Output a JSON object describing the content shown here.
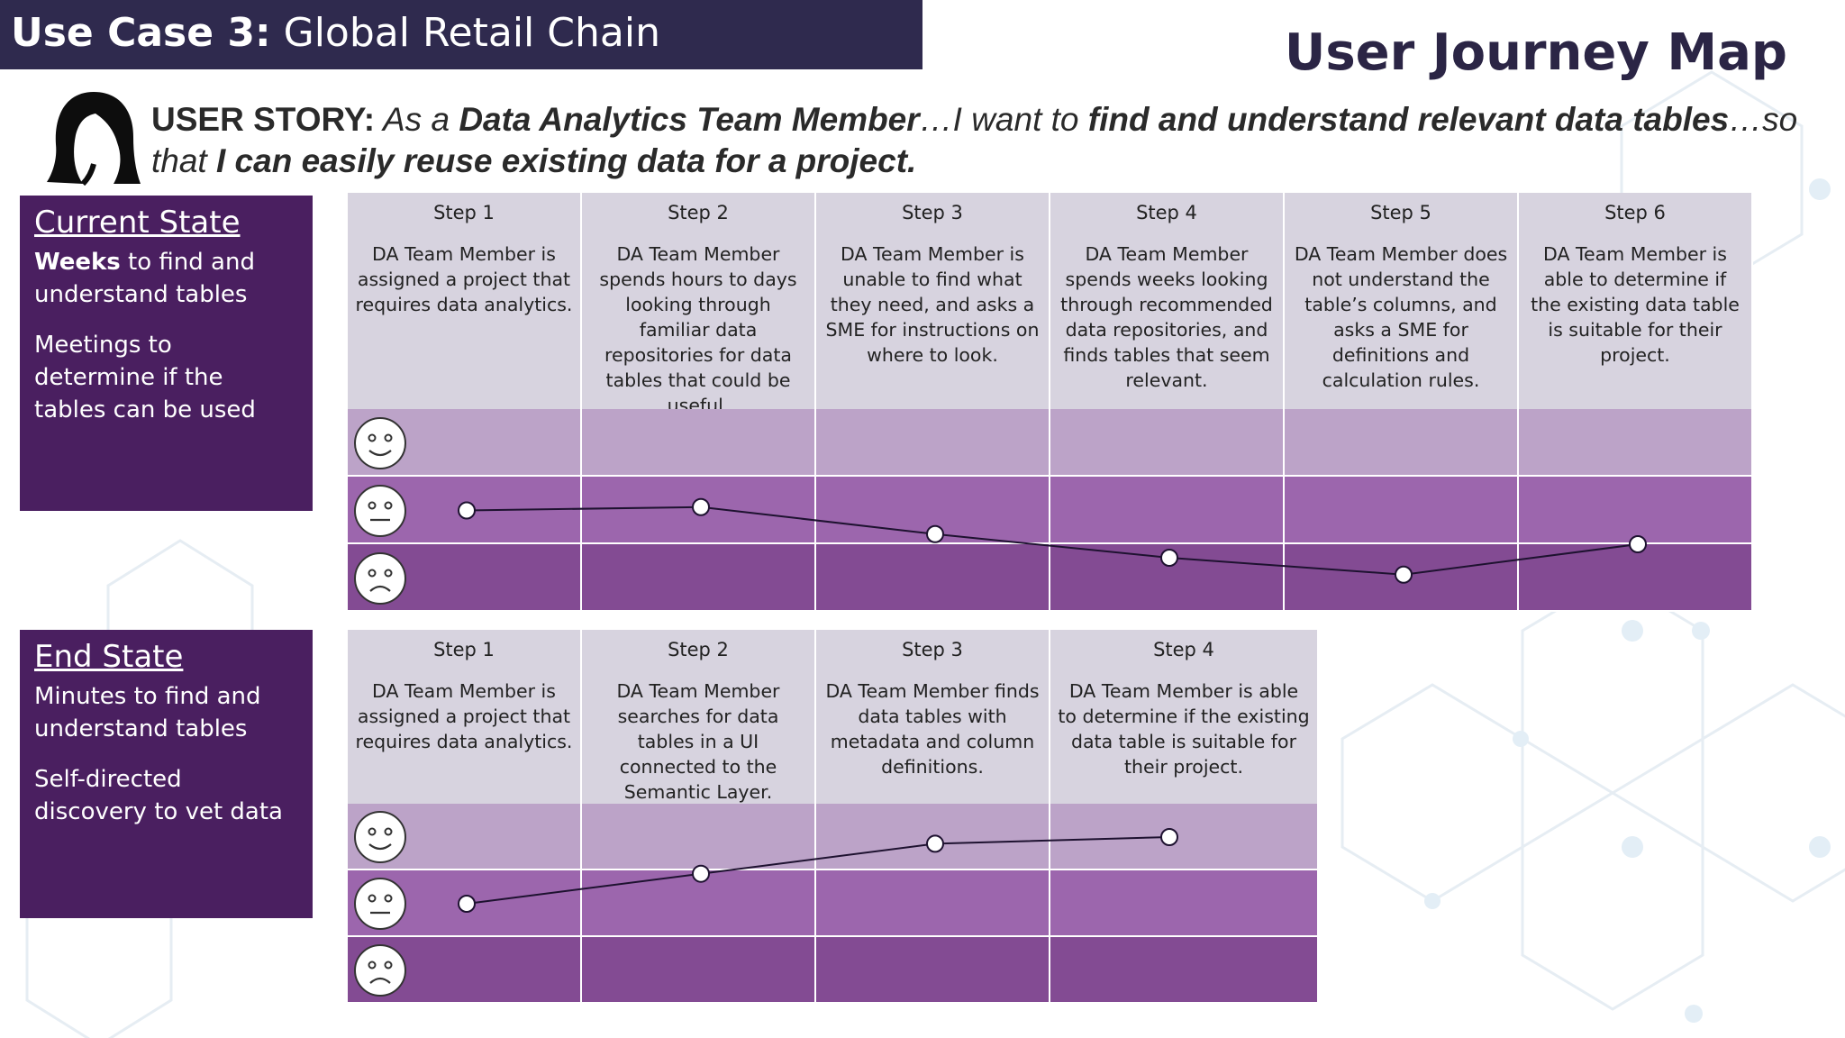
{
  "header": {
    "use_case_bold": "Use Case 3:",
    "use_case_rest": " Global Retail Chain",
    "title": "User Journey Map"
  },
  "story": {
    "lead": "USER STORY:",
    "part1": " As a ",
    "role": "Data Analytics Team Member",
    "part2": "…I want to ",
    "goal": "find and understand relevant data tables",
    "part3": "…so that ",
    "benefit": "I can easily reuse existing data for a project."
  },
  "current": {
    "title": "Current State",
    "line1_bold": "Weeks",
    "line1_rest": " to find and understand tables",
    "line2": "Meetings to determine if the tables can be used",
    "steps": [
      {
        "label": "Step 1",
        "desc": "DA Team Member is assigned a project that requires data analytics."
      },
      {
        "label": "Step 2",
        "desc": "DA Team Member spends hours to days looking through familiar data repositories for data tables that could be useful."
      },
      {
        "label": "Step 3",
        "desc": "DA Team Member is unable to find what they need, and asks a SME for instructions on where to look."
      },
      {
        "label": "Step 4",
        "desc": "DA Team Member spends weeks looking through recommended data repositories, and finds tables that seem relevant."
      },
      {
        "label": "Step 5",
        "desc": "DA Team Member does not understand the table’s columns, and asks a SME for definitions and calculation rules."
      },
      {
        "label": "Step 6",
        "desc": "DA Team Member is able to determine if the existing data table is suitable for their project."
      }
    ],
    "sentiment": [
      0.0,
      0.05,
      -0.35,
      -0.7,
      -0.95,
      -0.5
    ]
  },
  "end": {
    "title": "End State",
    "line1": "Minutes to find and understand tables",
    "line2": "Self-directed discovery to vet data",
    "steps": [
      {
        "label": "Step 1",
        "desc": "DA Team Member is assigned a project that requires data analytics."
      },
      {
        "label": "Step 2",
        "desc": "DA Team Member searches for data tables in a UI connected to the Semantic Layer."
      },
      {
        "label": "Step 3",
        "desc": "DA Team Member finds data tables with metadata and column definitions."
      },
      {
        "label": "Step 4",
        "desc": "DA Team Member is able to determine if the existing data table is suitable for their project."
      }
    ],
    "sentiment": [
      0.0,
      0.45,
      0.9,
      1.0
    ]
  },
  "colors": {
    "header_bg": "#2f2a4e",
    "state_box": "#4a1f60",
    "row_happy": "#bca3c8",
    "row_neutral": "#9c66ad",
    "row_sad": "#834b93",
    "step_header": "#d7d3df"
  },
  "icons": {
    "avatar": "woman-silhouette-icon",
    "happy": "happy-face-icon",
    "neutral": "neutral-face-icon",
    "sad": "sad-face-icon"
  }
}
